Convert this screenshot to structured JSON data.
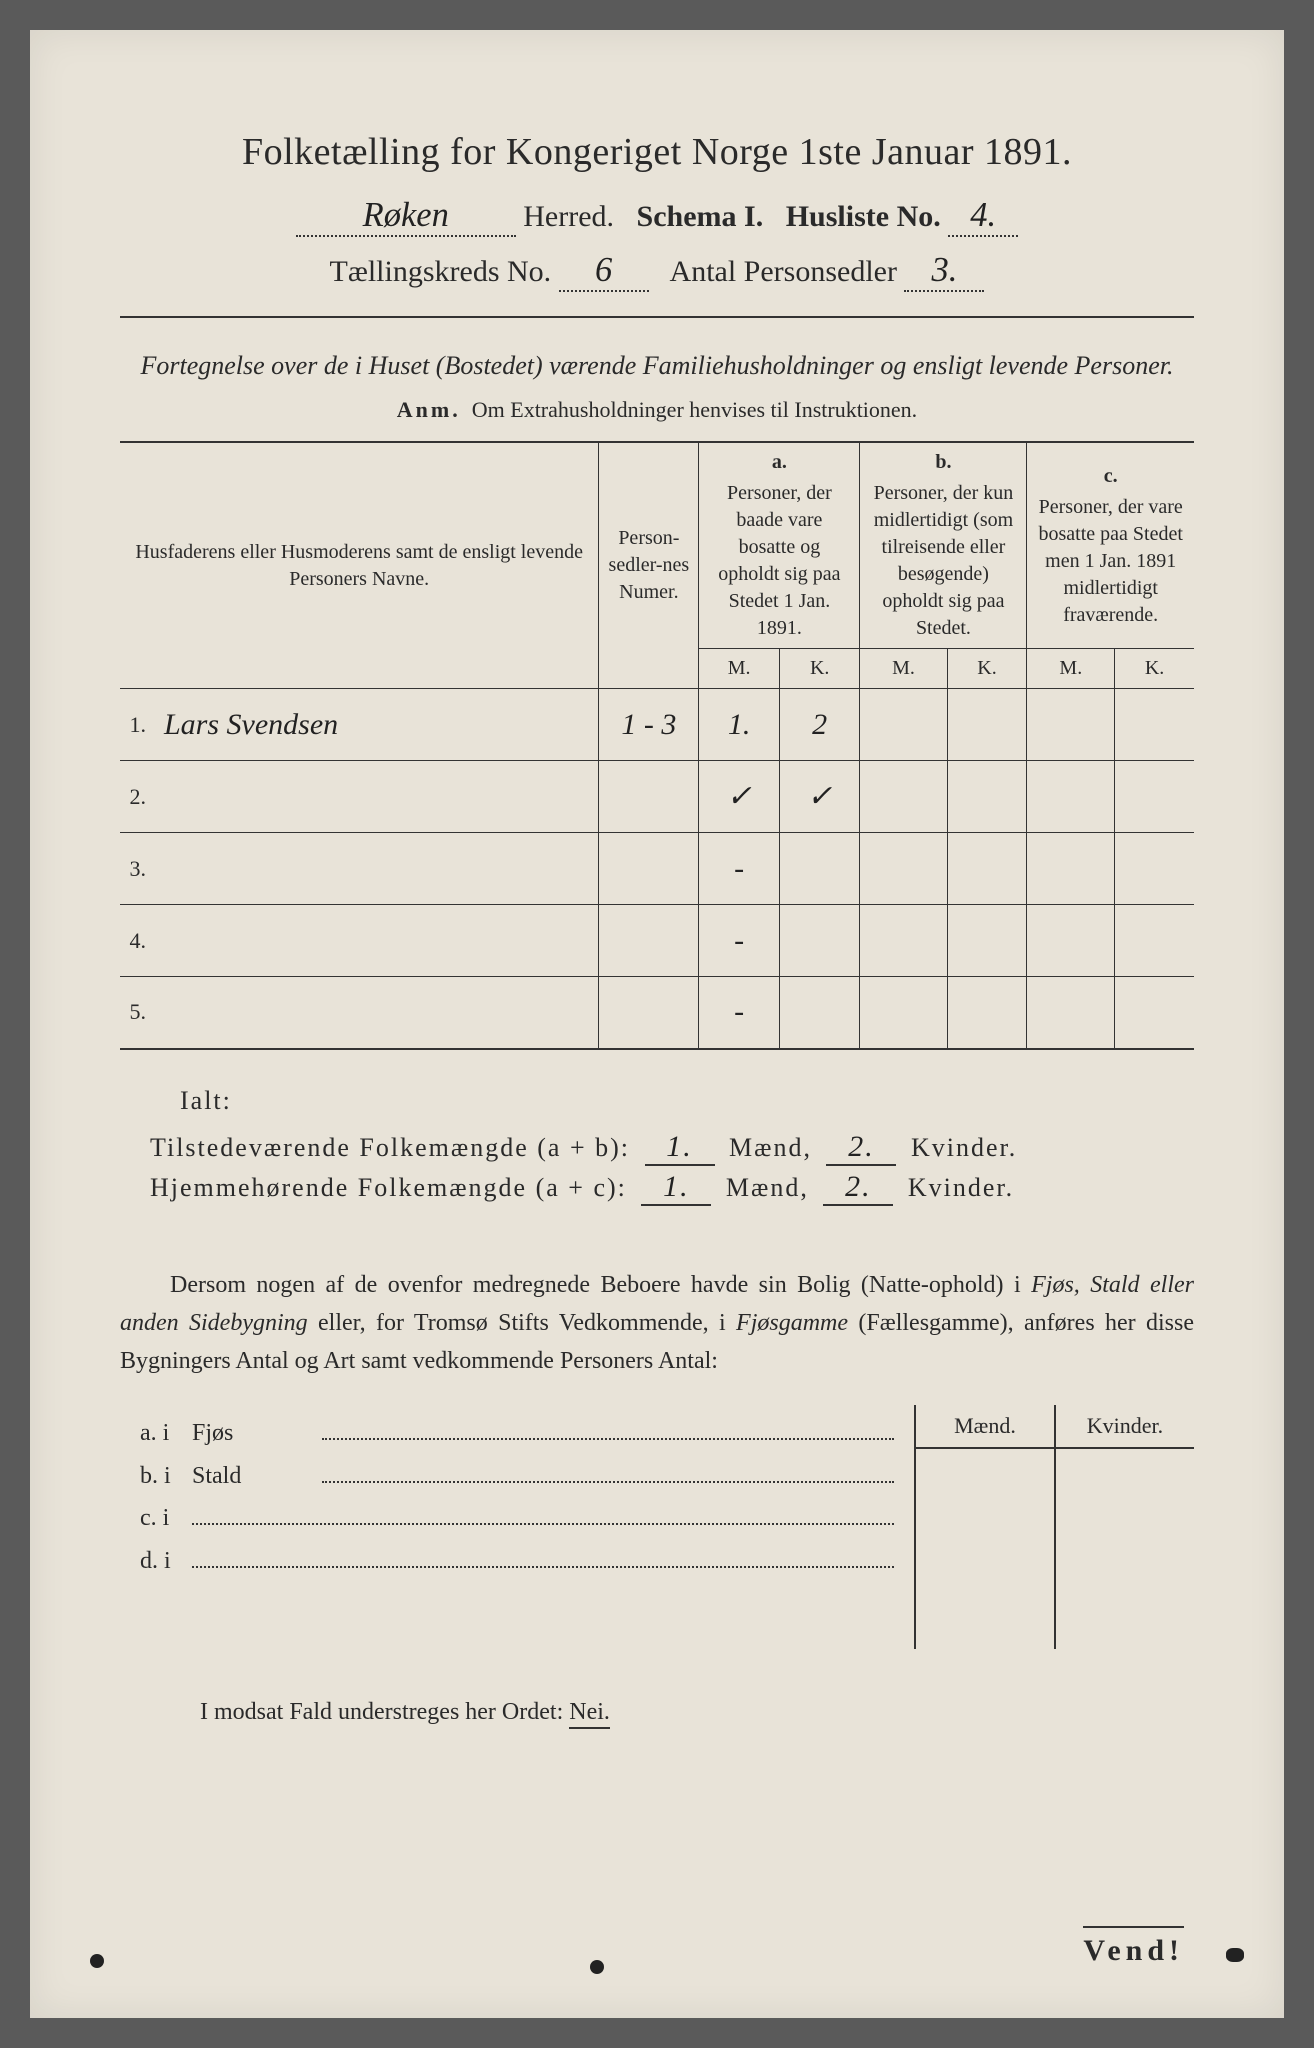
{
  "title": "Folketælling for Kongeriget Norge 1ste Januar 1891.",
  "herred_value": "Røken",
  "labels": {
    "herred": "Herred.",
    "schema": "Schema I.",
    "husliste_no": "Husliste No.",
    "tkreds": "Tællingskreds No.",
    "antal_ps": "Antal Personsedler"
  },
  "husliste_no": "4.",
  "tkreds_no": "6",
  "antal_personsedler": "3.",
  "subtitle": "Fortegnelse over de i Huset (Bostedet) værende Familiehusholdninger og ensligt levende Personer.",
  "anm_label": "Anm.",
  "anm_text": "Om Extrahusholdninger henvises til Instruktionen.",
  "table": {
    "col_name": "Husfaderens eller Husmoderens samt de ensligt levende Personers Navne.",
    "col_num": "Person-sedler-nes Numer.",
    "col_a_letter": "a.",
    "col_a": "Personer, der baade vare bosatte og opholdt sig paa Stedet 1 Jan. 1891.",
    "col_b_letter": "b.",
    "col_b": "Personer, der kun midlertidigt (som tilreisende eller besøgende) opholdt sig paa Stedet.",
    "col_c_letter": "c.",
    "col_c": "Personer, der vare bosatte paa Stedet men 1 Jan. 1891 midlertidigt fraværende.",
    "m": "M.",
    "k": "K.",
    "rows": [
      {
        "n": "1.",
        "name": "Lars Svendsen",
        "num": "1 - 3",
        "am": "1.",
        "ak": "2",
        "bm": "",
        "bk": "",
        "cm": "",
        "ck": ""
      },
      {
        "n": "2.",
        "name": "",
        "num": "",
        "am": "✓",
        "ak": "✓",
        "bm": "",
        "bk": "",
        "cm": "",
        "ck": ""
      },
      {
        "n": "3.",
        "name": "",
        "num": "",
        "am": "-",
        "ak": "",
        "bm": "",
        "bk": "",
        "cm": "",
        "ck": ""
      },
      {
        "n": "4.",
        "name": "",
        "num": "",
        "am": "-",
        "ak": "",
        "bm": "",
        "bk": "",
        "cm": "",
        "ck": ""
      },
      {
        "n": "5.",
        "name": "",
        "num": "",
        "am": "-",
        "ak": "",
        "bm": "",
        "bk": "",
        "cm": "",
        "ck": ""
      }
    ]
  },
  "ialt": "Ialt:",
  "sum1_label": "Tilstedeværende Folkemængde (a + b):",
  "sum2_label": "Hjemmehørende Folkemængde (a + c):",
  "sum1_m": "1.",
  "sum1_k": "2.",
  "sum2_m": "1.",
  "sum2_k": "2.",
  "maend": "Mænd,",
  "kvinder": "Kvinder.",
  "para": "Dersom nogen af de ovenfor medregnede Beboere havde sin Bolig (Natte-ophold) i Fjøs, Stald eller anden Sidebygning eller, for Tromsø Stifts Vedkommende, i Fjøsgamme (Fællesgamme), anføres her disse Bygningers Antal og Art samt vedkommende Personers Antal:",
  "side_head_m": "Mænd.",
  "side_head_k": "Kvinder.",
  "opts": {
    "a": "a.  i",
    "a_word": "Fjøs",
    "b": "b.  i",
    "b_word": "Stald",
    "c": "c.  i",
    "d": "d.  i"
  },
  "nei_line": "I modsat Fald understreges her Ordet:",
  "nei": "Nei.",
  "vend": "Vend!"
}
